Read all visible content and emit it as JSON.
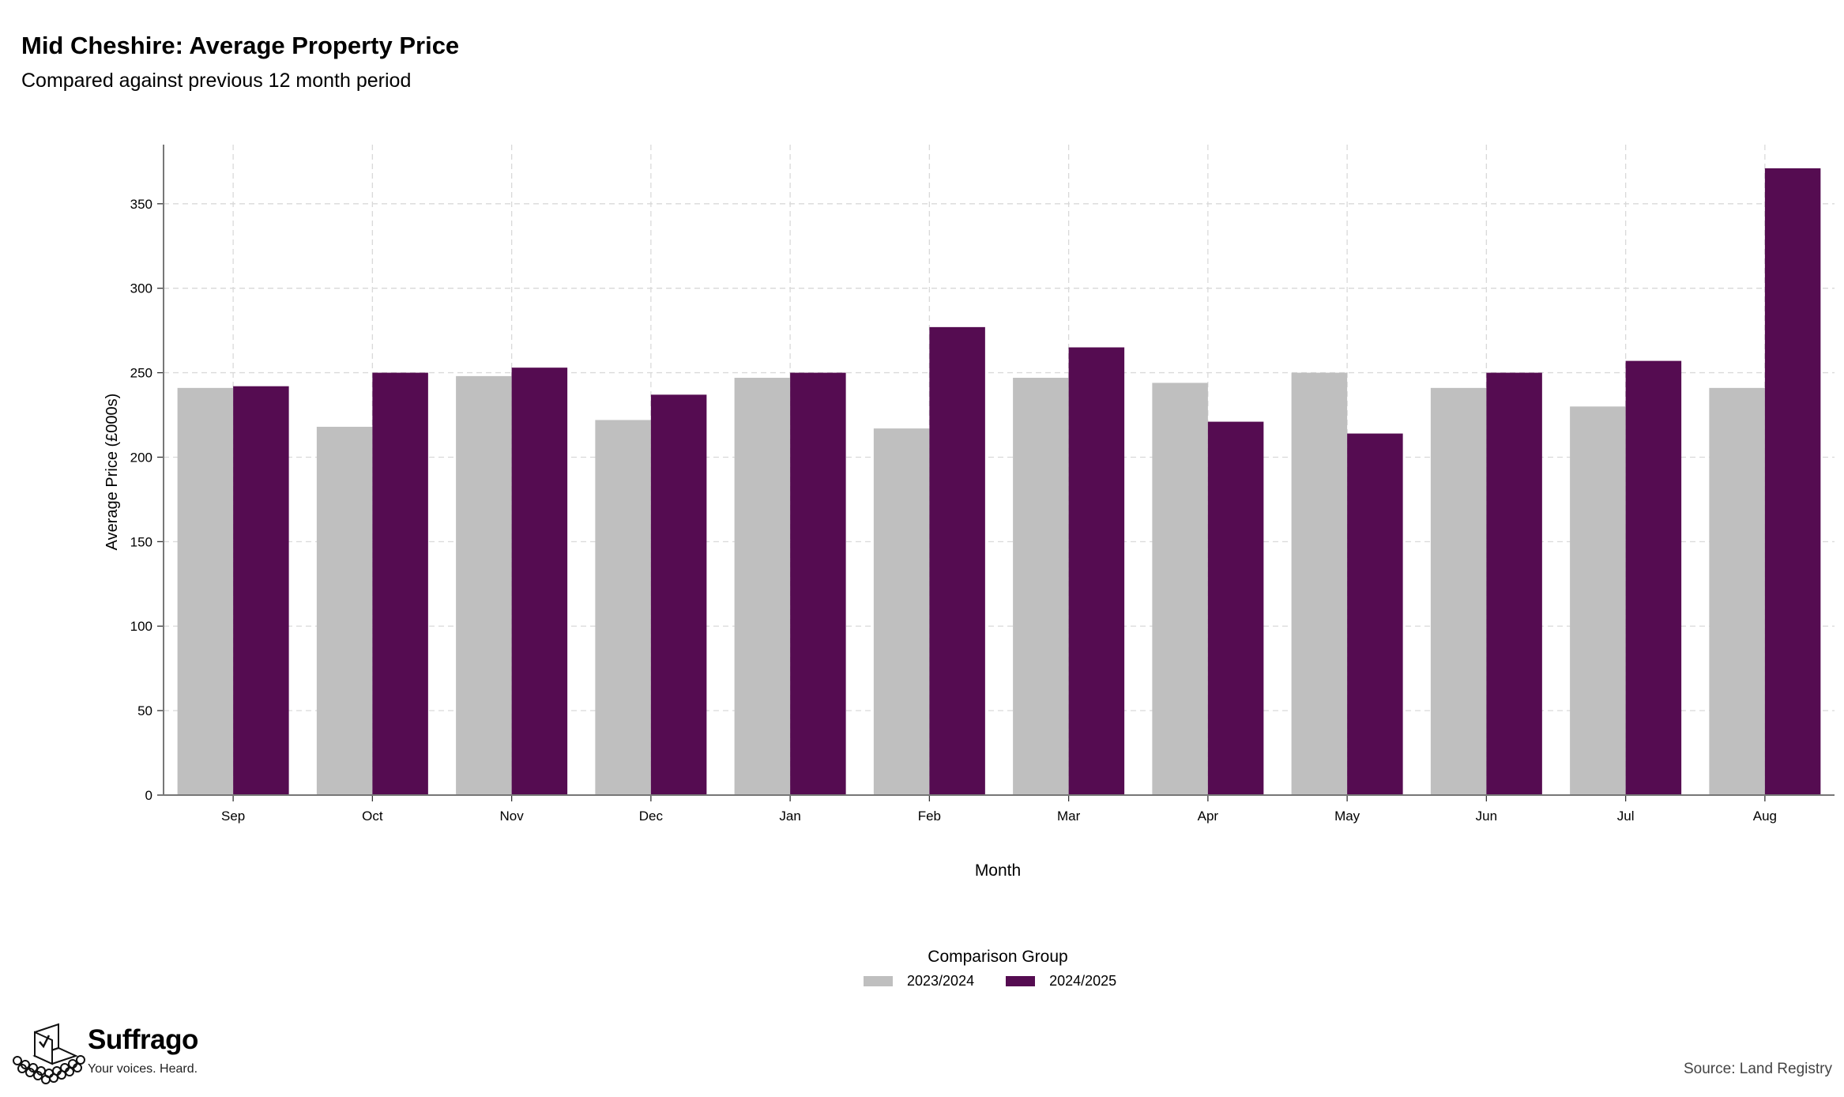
{
  "header": {
    "title": "Mid Cheshire: Average Property Price",
    "subtitle": "Compared against previous 12 month period"
  },
  "chart_data": {
    "type": "bar",
    "title": "Mid Cheshire: Average Property Price",
    "subtitle": "Compared against previous 12 month period",
    "xlabel": "Month",
    "ylabel": "Average Price (£000s)",
    "categories": [
      "Sep",
      "Oct",
      "Nov",
      "Dec",
      "Jan",
      "Feb",
      "Mar",
      "Apr",
      "May",
      "Jun",
      "Jul",
      "Aug"
    ],
    "series": [
      {
        "name": "2023/2024",
        "color": "#bfbfbf",
        "values": [
          241,
          218,
          248,
          222,
          247,
          217,
          247,
          244,
          250,
          241,
          230,
          241
        ]
      },
      {
        "name": "2024/2025",
        "color": "#550c51",
        "values": [
          242,
          250,
          253,
          237,
          250,
          277,
          265,
          221,
          214,
          250,
          257,
          371
        ]
      }
    ],
    "ylim": [
      0,
      385
    ],
    "yticks": [
      0,
      50,
      100,
      150,
      200,
      250,
      300,
      350
    ],
    "grid": true,
    "legend_title": "Comparison Group",
    "legend_position": "bottom"
  },
  "brand": {
    "name": "Suffrago",
    "tagline": "Your voices. Heard."
  },
  "footer": {
    "source": "Source: Land Registry"
  }
}
